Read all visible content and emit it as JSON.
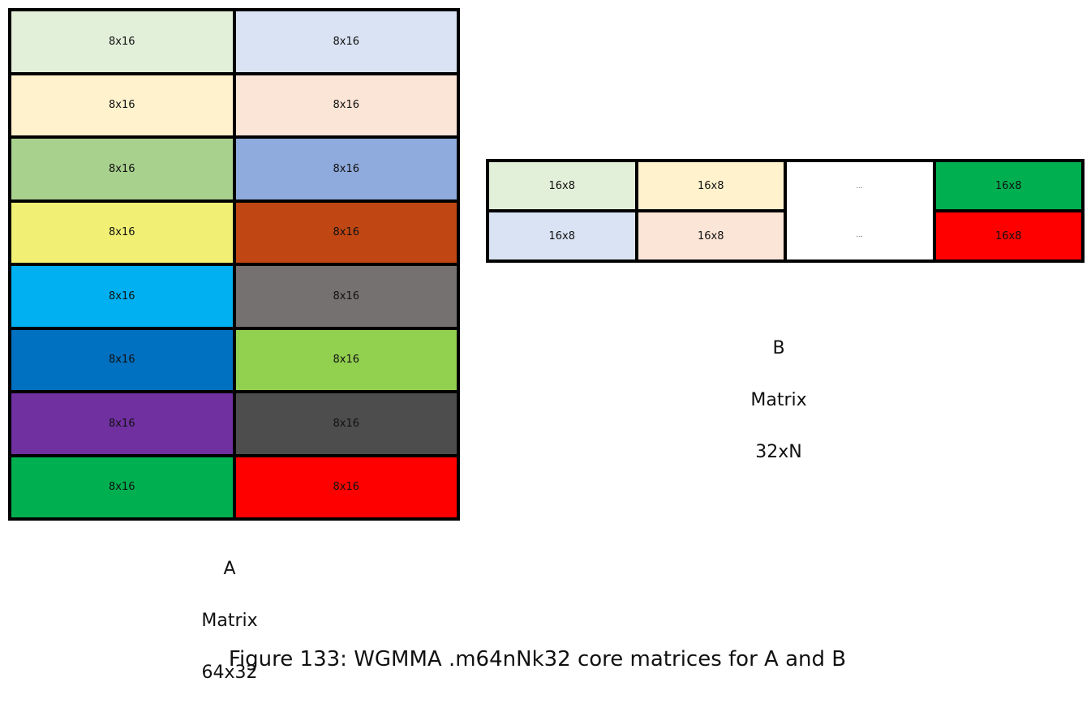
{
  "matrix_a": {
    "label_line1": "A",
    "label_line2": "Matrix",
    "label_line3": "64x32",
    "cells": [
      {
        "text": "8x16",
        "color": "#e2efd9"
      },
      {
        "text": "8x16",
        "color": "#dae3f3"
      },
      {
        "text": "8x16",
        "color": "#fff2cc"
      },
      {
        "text": "8x16",
        "color": "#fbe5d6"
      },
      {
        "text": "8x16",
        "color": "#a9d18e"
      },
      {
        "text": "8x16",
        "color": "#8faadc"
      },
      {
        "text": "8x16",
        "color": "#f1f075"
      },
      {
        "text": "8x16",
        "color": "#c04713"
      },
      {
        "text": "8x16",
        "color": "#00b0f0"
      },
      {
        "text": "8x16",
        "color": "#767171"
      },
      {
        "text": "8x16",
        "color": "#0070c0"
      },
      {
        "text": "8x16",
        "color": "#92d050"
      },
      {
        "text": "8x16",
        "color": "#7030a0"
      },
      {
        "text": "8x16",
        "color": "#4d4d4d"
      },
      {
        "text": "8x16",
        "color": "#00b050"
      },
      {
        "text": "8x16",
        "color": "#ff0000"
      }
    ]
  },
  "matrix_b": {
    "label_line1": "B",
    "label_line2": "Matrix",
    "label_line3": "32xN",
    "top_row": [
      {
        "text": "16x8",
        "color": "#e2efd9"
      },
      {
        "text": "16x8",
        "color": "#fff2cc"
      },
      {
        "text": "...",
        "color": "#ffffff"
      },
      {
        "text": "16x8",
        "color": "#00b050"
      }
    ],
    "bottom_row": [
      {
        "text": "16x8",
        "color": "#dae3f3"
      },
      {
        "text": "16x8",
        "color": "#fbe5d6"
      },
      {
        "text": "...",
        "color": "#ffffff"
      },
      {
        "text": "16x8",
        "color": "#ff0000"
      }
    ]
  },
  "caption": "Figure 133: WGMMA .m64nNk32 core matrices for A and B"
}
